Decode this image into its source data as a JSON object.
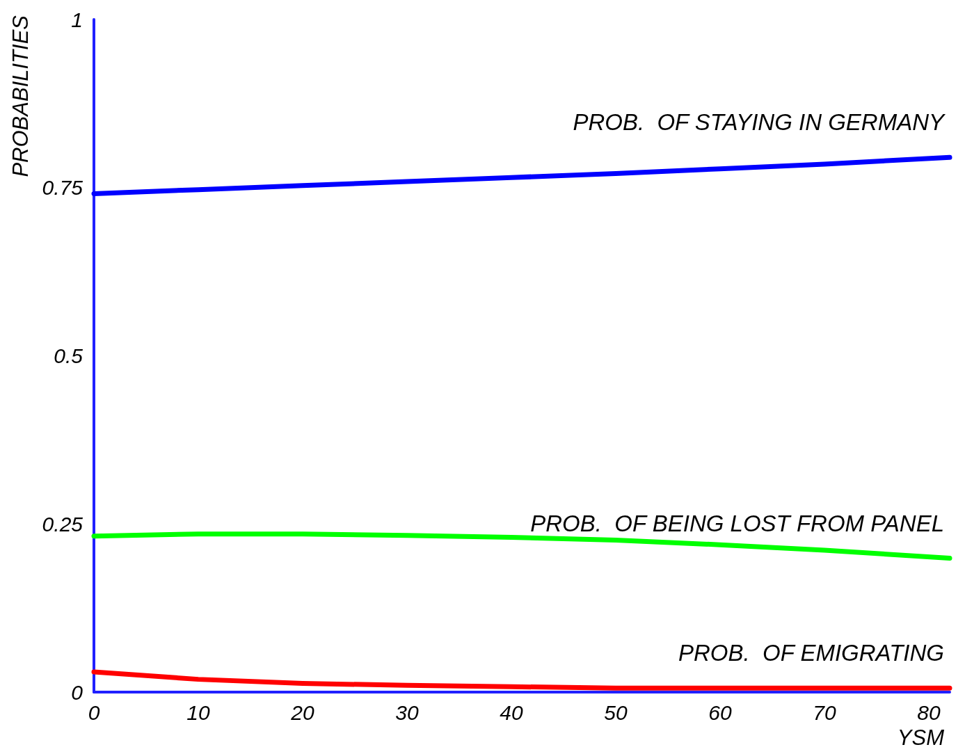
{
  "chart_data": {
    "type": "line",
    "xlabel": "YSM",
    "ylabel": "PROBABILITIES",
    "xlim": [
      0,
      82
    ],
    "ylim": [
      0,
      1
    ],
    "xticks": [
      0,
      10,
      20,
      30,
      40,
      50,
      60,
      70,
      80
    ],
    "yticks": [
      0,
      0.25,
      0.5,
      0.75,
      1
    ],
    "x": [
      0,
      10,
      20,
      30,
      40,
      50,
      60,
      70,
      82
    ],
    "series": [
      {
        "name": "PROB.  OF STAYING IN GERMANY",
        "color": "#0000ff",
        "values": [
          0.741,
          0.747,
          0.753,
          0.759,
          0.765,
          0.771,
          0.778,
          0.785,
          0.795
        ]
      },
      {
        "name": "PROB.  OF BEING LOST FROM PANEL",
        "color": "#00ff00",
        "values": [
          0.232,
          0.235,
          0.235,
          0.233,
          0.23,
          0.226,
          0.219,
          0.211,
          0.199
        ]
      },
      {
        "name": "PROB.  OF EMIGRATING",
        "color": "#ff0000",
        "values": [
          0.03,
          0.019,
          0.013,
          0.01,
          0.008,
          0.006,
          0.006,
          0.006,
          0.006
        ]
      }
    ],
    "grid": false,
    "legend": false,
    "marker": "none",
    "line_style": "solid"
  }
}
